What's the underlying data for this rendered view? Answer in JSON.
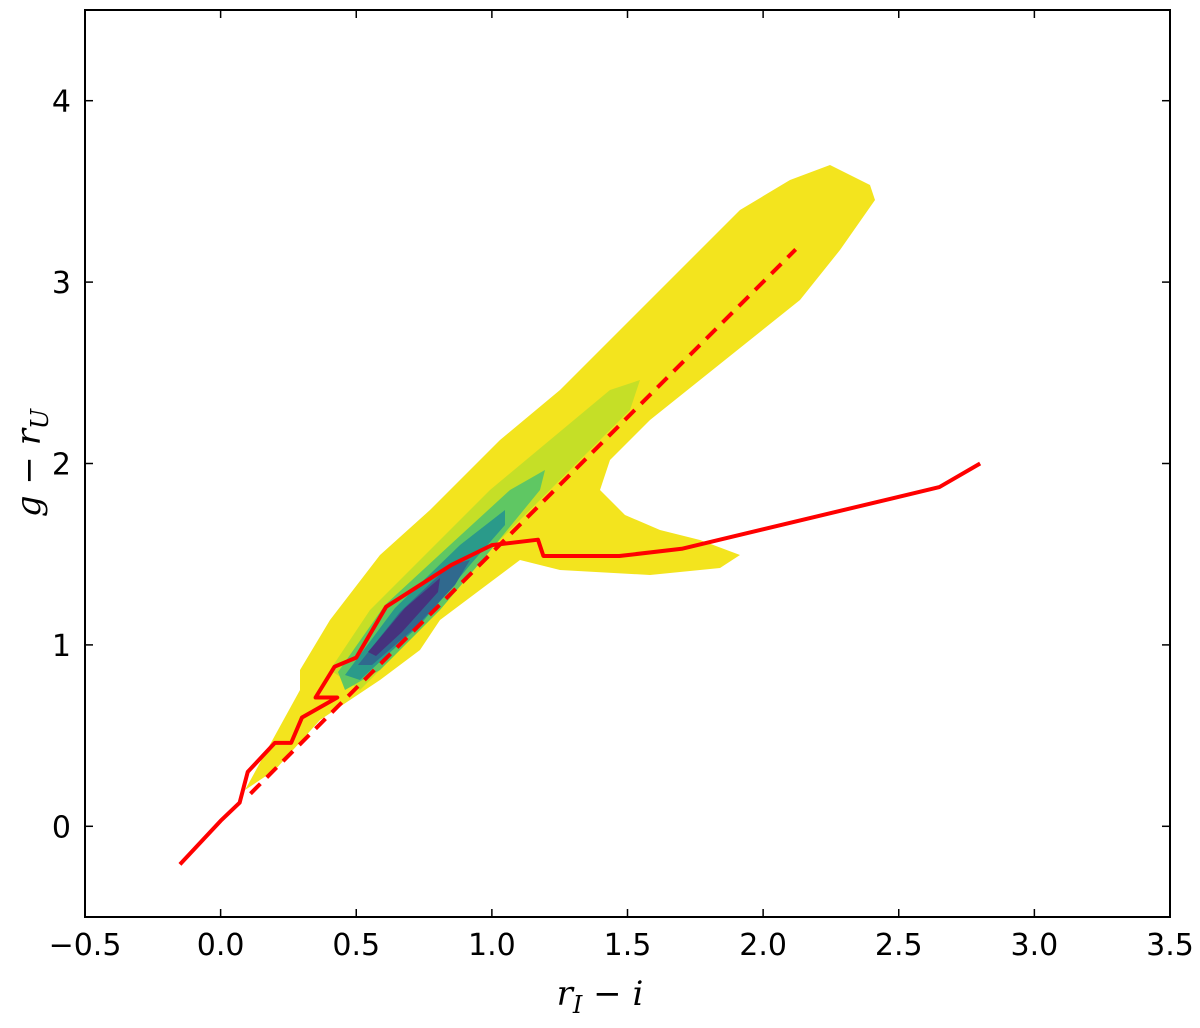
{
  "chart_data": {
    "type": "line",
    "xlabel": [
      "r",
      "I",
      " − i"
    ],
    "ylabel": [
      "g − r",
      "U"
    ],
    "xlim": [
      -0.5,
      3.5
    ],
    "ylim": [
      -0.5,
      4.5
    ],
    "xticks": [
      {
        "value": -0.5,
        "label": "−0.5"
      },
      {
        "value": 0,
        "label": "0.0"
      },
      {
        "value": 0.5,
        "label": "0.5"
      },
      {
        "value": 1,
        "label": "1.0"
      },
      {
        "value": 1.5,
        "label": "1.5"
      },
      {
        "value": 2,
        "label": "2.0"
      },
      {
        "value": 2.5,
        "label": "2.5"
      },
      {
        "value": 3,
        "label": "3.0"
      },
      {
        "value": 3.5,
        "label": "3.5"
      }
    ],
    "yticks": [
      0,
      1,
      2,
      3,
      4
    ],
    "series": [
      {
        "color": "#ff0000",
        "style": "solid",
        "x": [
          -0.15,
          0.0,
          0.07,
          0.1,
          0.2,
          0.26,
          0.3,
          0.43,
          0.35,
          0.42,
          0.5,
          0.61,
          0.85,
          1.0,
          1.17,
          1.19,
          1.47,
          1.7,
          2.65,
          2.8
        ],
        "values": [
          -0.21,
          0.03,
          0.13,
          0.3,
          0.46,
          0.46,
          0.6,
          0.71,
          0.71,
          0.88,
          0.93,
          1.21,
          1.44,
          1.55,
          1.58,
          1.49,
          1.49,
          1.53,
          1.87,
          2.0
        ]
      },
      {
        "color": "#ff0000",
        "style": "dashed",
        "x": [
          0.11,
          2.12
        ],
        "values": [
          0.18,
          3.18
        ]
      }
    ]
  }
}
